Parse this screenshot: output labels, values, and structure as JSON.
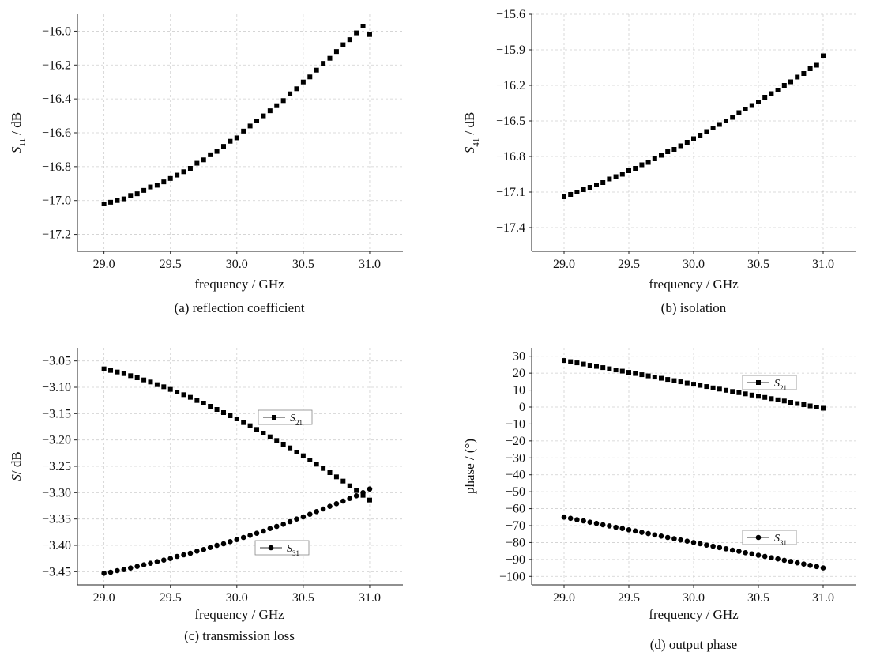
{
  "chart_data": [
    {
      "type": "scatter",
      "caption": "(a) reflection coefficient",
      "xlabel": "frequency / GHz",
      "ylabel": {
        "main": "S",
        "sub": "11",
        "unit": " / dB"
      },
      "xlim": [
        28.8,
        31.25
      ],
      "ylim": [
        -17.3,
        -15.9
      ],
      "xticks": [
        29.0,
        29.5,
        30.0,
        30.5,
        31.0
      ],
      "xtick_labels": [
        "29.0",
        "29.5",
        "30.0",
        "30.5",
        "31.0"
      ],
      "yticks": [
        -16.0,
        -16.2,
        -16.4,
        -16.6,
        -16.8,
        -17.0,
        -17.2
      ],
      "ytick_labels": [
        "−16.0",
        "−16.2",
        "−16.4",
        "−16.6",
        "−16.8",
        "−17.0",
        "−17.2"
      ],
      "grid": true,
      "series": [
        {
          "marker": "square",
          "x_start": 29.0,
          "x_end": 31.0,
          "n": 41,
          "y": [
            -17.02,
            -17.01,
            -17.0,
            -16.99,
            -16.97,
            -16.96,
            -16.94,
            -16.92,
            -16.91,
            -16.89,
            -16.87,
            -16.85,
            -16.83,
            -16.81,
            -16.78,
            -16.76,
            -16.73,
            -16.71,
            -16.68,
            -16.65,
            -16.63,
            -16.59,
            -16.56,
            -16.53,
            -16.5,
            -16.47,
            -16.44,
            -16.41,
            -16.37,
            -16.34,
            -16.3,
            -16.27,
            -16.23,
            -16.19,
            -16.16,
            -16.12,
            -16.08,
            -16.05,
            -16.01,
            -15.97,
            -16.02
          ]
        }
      ]
    },
    {
      "type": "scatter",
      "caption": "(b) isolation",
      "xlabel": "frequency / GHz",
      "ylabel": {
        "main": "S",
        "sub": "41",
        "unit": " / dB"
      },
      "xlim": [
        28.75,
        31.25
      ],
      "ylim": [
        -17.6,
        -15.6
      ],
      "xticks": [
        29.0,
        29.5,
        30.0,
        30.5,
        31.0
      ],
      "xtick_labels": [
        "29.0",
        "29.5",
        "30.0",
        "30.5",
        "31.0"
      ],
      "yticks": [
        -15.6,
        -15.9,
        -16.2,
        -16.5,
        -16.8,
        -17.1,
        -17.4
      ],
      "ytick_labels": [
        "−15.6",
        "−15.9",
        "−16.2",
        "−16.5",
        "−16.8",
        "−17.1",
        "−17.4"
      ],
      "grid": true,
      "series": [
        {
          "marker": "square",
          "x_start": 29.0,
          "x_end": 31.0,
          "n": 41,
          "y": [
            -17.14,
            -17.12,
            -17.1,
            -17.08,
            -17.06,
            -17.04,
            -17.02,
            -16.99,
            -16.97,
            -16.95,
            -16.92,
            -16.9,
            -16.87,
            -16.85,
            -16.82,
            -16.79,
            -16.76,
            -16.74,
            -16.71,
            -16.68,
            -16.65,
            -16.62,
            -16.59,
            -16.56,
            -16.53,
            -16.5,
            -16.47,
            -16.43,
            -16.4,
            -16.37,
            -16.34,
            -16.3,
            -16.27,
            -16.24,
            -16.2,
            -16.17,
            -16.13,
            -16.1,
            -16.06,
            -16.03,
            -15.95
          ]
        }
      ]
    },
    {
      "type": "scatter",
      "caption": "(c) transmission loss",
      "xlabel": "frequency / GHz",
      "ylabel": {
        "main": "S",
        "sub": "",
        "unit": "/ dB"
      },
      "xlim": [
        28.8,
        31.25
      ],
      "ylim": [
        -3.475,
        -3.025
      ],
      "xticks": [
        29.0,
        29.5,
        30.0,
        30.5,
        31.0
      ],
      "xtick_labels": [
        "29.0",
        "29.5",
        "30.0",
        "30.5",
        "31.0"
      ],
      "yticks": [
        -3.05,
        -3.1,
        -3.15,
        -3.2,
        -3.25,
        -3.3,
        -3.35,
        -3.4,
        -3.45
      ],
      "ytick_labels": [
        "−3.05",
        "−3.10",
        "−3.15",
        "−3.20",
        "−3.25",
        "−3.30",
        "−3.35",
        "−3.40",
        "−3.45"
      ],
      "grid": true,
      "series": [
        {
          "name": {
            "main": "S",
            "sub": "21"
          },
          "marker": "square",
          "x_start": 29.0,
          "x_end": 31.0,
          "n": 41,
          "y": [
            -3.065,
            -3.068,
            -3.071,
            -3.074,
            -3.078,
            -3.082,
            -3.086,
            -3.09,
            -3.095,
            -3.099,
            -3.104,
            -3.109,
            -3.114,
            -3.119,
            -3.125,
            -3.13,
            -3.136,
            -3.142,
            -3.148,
            -3.154,
            -3.16,
            -3.167,
            -3.173,
            -3.18,
            -3.187,
            -3.194,
            -3.201,
            -3.208,
            -3.215,
            -3.223,
            -3.23,
            -3.238,
            -3.246,
            -3.254,
            -3.262,
            -3.27,
            -3.278,
            -3.287,
            -3.296,
            -3.305,
            -3.314
          ]
        },
        {
          "name": {
            "main": "S",
            "sub": "31"
          },
          "marker": "circle",
          "x_start": 29.0,
          "x_end": 31.0,
          "n": 41,
          "y": [
            -3.453,
            -3.451,
            -3.448,
            -3.446,
            -3.443,
            -3.44,
            -3.437,
            -3.434,
            -3.431,
            -3.428,
            -3.425,
            -3.421,
            -3.418,
            -3.415,
            -3.411,
            -3.408,
            -3.404,
            -3.4,
            -3.397,
            -3.393,
            -3.389,
            -3.385,
            -3.381,
            -3.377,
            -3.373,
            -3.368,
            -3.364,
            -3.36,
            -3.355,
            -3.35,
            -3.346,
            -3.341,
            -3.336,
            -3.331,
            -3.326,
            -3.321,
            -3.316,
            -3.311,
            -3.306,
            -3.3,
            -3.293
          ]
        }
      ],
      "legend_positions": [
        "center-right",
        "lower-center"
      ]
    },
    {
      "type": "scatter",
      "caption": "(d) output phase",
      "xlabel": "frequency / GHz",
      "ylabel": {
        "main": "phase / (°)",
        "sub": "",
        "unit": ""
      },
      "xlim": [
        28.75,
        31.25
      ],
      "ylim": [
        -105,
        35
      ],
      "xticks": [
        29.0,
        29.5,
        30.0,
        30.5,
        31.0
      ],
      "xtick_labels": [
        "29.0",
        "29.5",
        "30.0",
        "30.5",
        "31.0"
      ],
      "yticks": [
        30,
        20,
        10,
        0,
        -10,
        -20,
        -30,
        -40,
        -50,
        -60,
        -70,
        -80,
        -90,
        -100
      ],
      "ytick_labels": [
        "30",
        "20",
        "10",
        "0",
        "−10",
        "−20",
        "−30",
        "−40",
        "−50",
        "−60",
        "−70",
        "−80",
        "−90",
        "−100"
      ],
      "grid": true,
      "series": [
        {
          "name": {
            "main": "S",
            "sub": "21"
          },
          "marker": "square",
          "x_start": 29.0,
          "x_end": 31.0,
          "n": 41,
          "y": [
            27.5,
            26.8,
            26.1,
            25.4,
            24.7,
            24.0,
            23.3,
            22.6,
            21.9,
            21.2,
            20.5,
            19.8,
            19.1,
            18.4,
            17.7,
            17.0,
            16.3,
            15.6,
            14.9,
            14.2,
            13.5,
            12.8,
            12.1,
            11.3,
            10.6,
            9.9,
            9.2,
            8.5,
            7.8,
            7.1,
            6.4,
            5.7,
            5.0,
            4.3,
            3.6,
            2.8,
            2.1,
            1.4,
            0.7,
            0.0,
            -0.7
          ]
        },
        {
          "name": {
            "main": "S",
            "sub": "31"
          },
          "marker": "circle",
          "x_start": 29.0,
          "x_end": 31.0,
          "n": 41,
          "y": [
            -65.0,
            -65.7,
            -66.5,
            -67.2,
            -68.0,
            -68.7,
            -69.5,
            -70.2,
            -71.0,
            -71.7,
            -72.5,
            -73.2,
            -74.0,
            -74.7,
            -75.5,
            -76.2,
            -77.0,
            -77.7,
            -78.5,
            -79.2,
            -80.0,
            -80.7,
            -81.5,
            -82.2,
            -83.0,
            -83.7,
            -84.5,
            -85.2,
            -86.0,
            -86.7,
            -87.5,
            -88.2,
            -89.0,
            -89.7,
            -90.5,
            -91.2,
            -92.0,
            -92.7,
            -93.5,
            -94.2,
            -95.0
          ]
        }
      ],
      "legend_positions": [
        "upper-right",
        "lower-right"
      ]
    }
  ]
}
